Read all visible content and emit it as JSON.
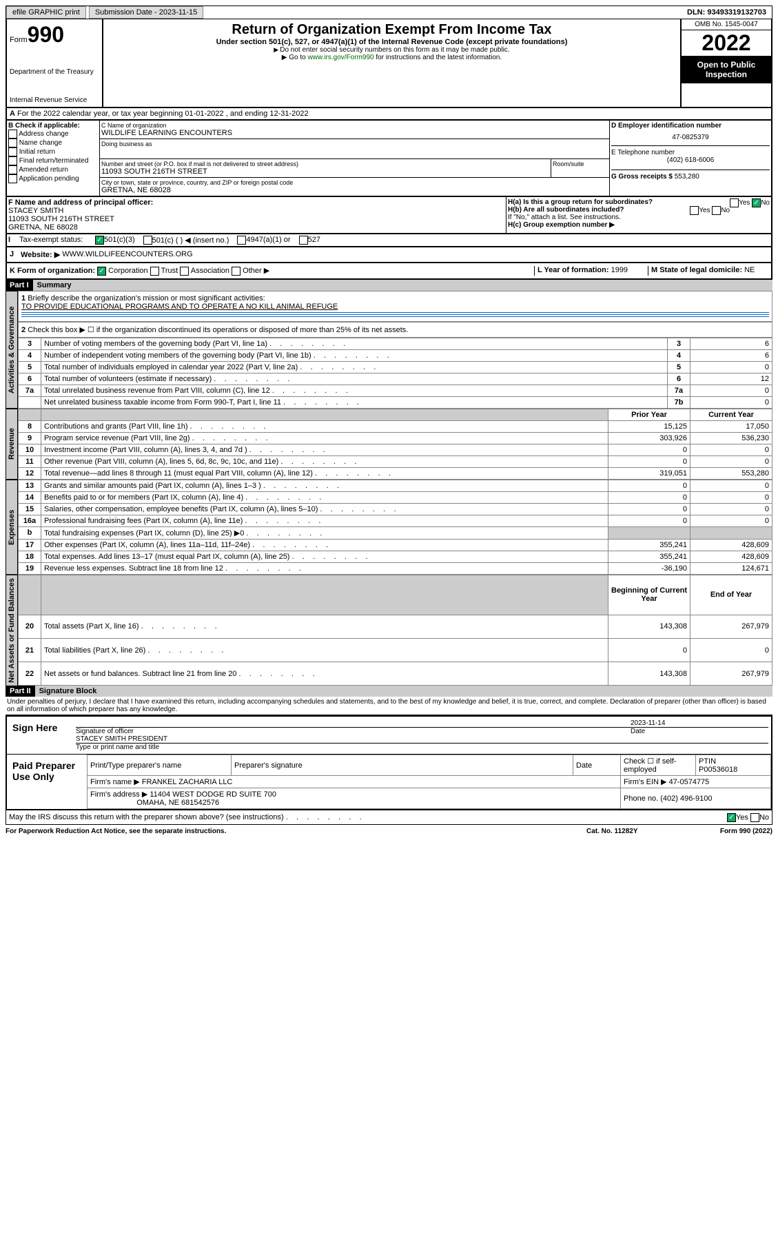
{
  "header_bar": {
    "efile": "efile GRAPHIC print",
    "submission": "Submission Date - 2023-11-15",
    "dln": "DLN: 93493319132703"
  },
  "form_header": {
    "form_label": "Form",
    "form_num": "990",
    "dept": "Department of the Treasury",
    "irs": "Internal Revenue Service",
    "title": "Return of Organization Exempt From Income Tax",
    "sub": "Under section 501(c), 527, or 4947(a)(1) of the Internal Revenue Code (except private foundations)",
    "note1": "Do not enter social security numbers on this form as it may be made public.",
    "note2_pre": "Go to ",
    "note2_link": "www.irs.gov/Form990",
    "note2_post": " for instructions and the latest information.",
    "omb": "OMB No. 1545-0047",
    "year": "2022",
    "open": "Open to Public Inspection"
  },
  "section_a": "For the 2022 calendar year, or tax year beginning 01-01-2022   , and ending 12-31-2022",
  "col_b": {
    "label": "B Check if applicable:",
    "opts": [
      "Address change",
      "Name change",
      "Initial return",
      "Final return/terminated",
      "Amended return",
      "Application pending"
    ]
  },
  "col_c": {
    "name_label": "C Name of organization",
    "name": "WILDLIFE LEARNING ENCOUNTERS",
    "dba_label": "Doing business as",
    "street_label": "Number and street (or P.O. box if mail is not delivered to street address)",
    "room_label": "Room/suite",
    "street": "11093 SOUTH 216TH STREET",
    "city_label": "City or town, state or province, country, and ZIP or foreign postal code",
    "city": "GRETNA, NE  68028"
  },
  "col_d": {
    "ein_label": "D Employer identification number",
    "ein": "47-0825379",
    "phone_label": "E Telephone number",
    "phone": "(402) 618-6006",
    "gross_label": "G Gross receipts $",
    "gross": "553,280"
  },
  "row_f": {
    "label": "F  Name and address of principal officer:",
    "name": "STACEY SMITH",
    "addr1": "11093 SOUTH 216TH STREET",
    "addr2": "GRETNA, NE  68028"
  },
  "row_h": {
    "ha": "H(a)  Is this a group return for subordinates?",
    "hb": "H(b)  Are all subordinates included?",
    "hb_note": "If \"No,\" attach a list. See instructions.",
    "hc": "H(c)  Group exemption number ▶",
    "yes": "Yes",
    "no": "No"
  },
  "row_i": {
    "label": "Tax-exempt status:",
    "opts": [
      "501(c)(3)",
      "501(c) (  ) ◀ (insert no.)",
      "4947(a)(1) or",
      "527"
    ]
  },
  "row_j": {
    "label": "Website: ▶",
    "val": "WWW.WILDLIFEENCOUNTERS.ORG"
  },
  "row_k": {
    "label": "K Form of organization:",
    "opts": [
      "Corporation",
      "Trust",
      "Association",
      "Other ▶"
    ]
  },
  "row_l": {
    "label": "L Year of formation:",
    "val": "1999"
  },
  "row_m": {
    "label": "M State of legal domicile:",
    "val": "NE"
  },
  "part1": {
    "header": "Part I",
    "title": "Summary",
    "q1_label": "Briefly describe the organization's mission or most significant activities:",
    "q1_val": "TO PROVIDE EDUCATIONAL PROGRAMS AND TO OPERATE A NO KILL ANIMAL REFUGE",
    "q2": "Check this box ▶ ☐  if the organization discontinued its operations or disposed of more than 25% of its net assets.",
    "vtabs": {
      "gov": "Activities & Governance",
      "rev": "Revenue",
      "exp": "Expenses",
      "net": "Net Assets or Fund Balances"
    },
    "col_prior": "Prior Year",
    "col_current": "Current Year",
    "col_beg": "Beginning of Current Year",
    "col_end": "End of Year",
    "lines_gov": [
      {
        "n": "3",
        "label": "Number of voting members of the governing body (Part VI, line 1a)",
        "box": "3",
        "val": "6"
      },
      {
        "n": "4",
        "label": "Number of independent voting members of the governing body (Part VI, line 1b)",
        "box": "4",
        "val": "6"
      },
      {
        "n": "5",
        "label": "Total number of individuals employed in calendar year 2022 (Part V, line 2a)",
        "box": "5",
        "val": "0"
      },
      {
        "n": "6",
        "label": "Total number of volunteers (estimate if necessary)",
        "box": "6",
        "val": "12"
      },
      {
        "n": "7a",
        "label": "Total unrelated business revenue from Part VIII, column (C), line 12",
        "box": "7a",
        "val": "0"
      },
      {
        "n": "",
        "label": "Net unrelated business taxable income from Form 990-T, Part I, line 11",
        "box": "7b",
        "val": "0"
      }
    ],
    "lines_rev": [
      {
        "n": "8",
        "label": "Contributions and grants (Part VIII, line 1h)",
        "p": "15,125",
        "c": "17,050"
      },
      {
        "n": "9",
        "label": "Program service revenue (Part VIII, line 2g)",
        "p": "303,926",
        "c": "536,230"
      },
      {
        "n": "10",
        "label": "Investment income (Part VIII, column (A), lines 3, 4, and 7d )",
        "p": "0",
        "c": "0"
      },
      {
        "n": "11",
        "label": "Other revenue (Part VIII, column (A), lines 5, 6d, 8c, 9c, 10c, and 11e)",
        "p": "0",
        "c": "0"
      },
      {
        "n": "12",
        "label": "Total revenue—add lines 8 through 11 (must equal Part VIII, column (A), line 12)",
        "p": "319,051",
        "c": "553,280"
      }
    ],
    "lines_exp": [
      {
        "n": "13",
        "label": "Grants and similar amounts paid (Part IX, column (A), lines 1–3 )",
        "p": "0",
        "c": "0"
      },
      {
        "n": "14",
        "label": "Benefits paid to or for members (Part IX, column (A), line 4)",
        "p": "0",
        "c": "0"
      },
      {
        "n": "15",
        "label": "Salaries, other compensation, employee benefits (Part IX, column (A), lines 5–10)",
        "p": "0",
        "c": "0"
      },
      {
        "n": "16a",
        "label": "Professional fundraising fees (Part IX, column (A), line 11e)",
        "p": "0",
        "c": "0"
      },
      {
        "n": "b",
        "label": "Total fundraising expenses (Part IX, column (D), line 25) ▶0",
        "p": "",
        "c": "",
        "shade": true
      },
      {
        "n": "17",
        "label": "Other expenses (Part IX, column (A), lines 11a–11d, 11f–24e)",
        "p": "355,241",
        "c": "428,609"
      },
      {
        "n": "18",
        "label": "Total expenses. Add lines 13–17 (must equal Part IX, column (A), line 25)",
        "p": "355,241",
        "c": "428,609"
      },
      {
        "n": "19",
        "label": "Revenue less expenses. Subtract line 18 from line 12",
        "p": "-36,190",
        "c": "124,671"
      }
    ],
    "lines_net": [
      {
        "n": "20",
        "label": "Total assets (Part X, line 16)",
        "p": "143,308",
        "c": "267,979"
      },
      {
        "n": "21",
        "label": "Total liabilities (Part X, line 26)",
        "p": "0",
        "c": "0"
      },
      {
        "n": "22",
        "label": "Net assets or fund balances. Subtract line 21 from line 20",
        "p": "143,308",
        "c": "267,979"
      }
    ]
  },
  "part2": {
    "header": "Part II",
    "title": "Signature Block",
    "decl": "Under penalties of perjury, I declare that I have examined this return, including accompanying schedules and statements, and to the best of my knowledge and belief, it is true, correct, and complete. Declaration of preparer (other than officer) is based on all information of which preparer has any knowledge."
  },
  "sign": {
    "label": "Sign Here",
    "sig_label": "Signature of officer",
    "date_label": "Date",
    "date": "2023-11-14",
    "name": "STACEY SMITH  PRESIDENT",
    "name_label": "Type or print name and title"
  },
  "preparer": {
    "label": "Paid Preparer Use Only",
    "name_label": "Print/Type preparer's name",
    "sig_label": "Preparer's signature",
    "date_label": "Date",
    "check_label": "Check ☐ if self-employed",
    "ptin_label": "PTIN",
    "ptin": "P00536018",
    "firm_name_label": "Firm's name    ▶",
    "firm_name": "FRANKEL ZACHARIA LLC",
    "firm_ein_label": "Firm's EIN ▶",
    "firm_ein": "47-0574775",
    "firm_addr_label": "Firm's address ▶",
    "firm_addr1": "11404 WEST DODGE RD SUITE 700",
    "firm_addr2": "OMAHA, NE  681542576",
    "phone_label": "Phone no.",
    "phone": "(402) 496-9100"
  },
  "discuss": {
    "q": "May the IRS discuss this return with the preparer shown above? (see instructions)",
    "yes": "Yes",
    "no": "No"
  },
  "footer": {
    "left": "For Paperwork Reduction Act Notice, see the separate instructions.",
    "center": "Cat. No. 11282Y",
    "right": "Form 990 (2022)"
  }
}
